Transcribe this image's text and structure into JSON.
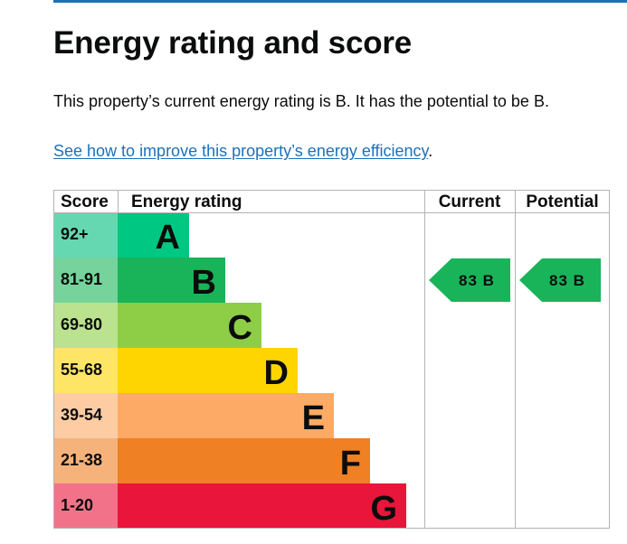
{
  "page": {
    "title": "Energy rating and score",
    "intro": "This property’s current energy rating is B. It has the potential to be B.",
    "link_text": "See how to improve this property’s energy efficiency",
    "link_suffix": "."
  },
  "chart_data": {
    "type": "table",
    "headers": {
      "score": "Score",
      "rating": "Energy rating",
      "current": "Current",
      "potential": "Potential"
    },
    "bands": [
      {
        "score": "92+",
        "letter": "A",
        "color": "#00c781",
        "score_bg": "#66d8b1"
      },
      {
        "score": "81-91",
        "letter": "B",
        "color": "#19b459",
        "score_bg": "#75d39b"
      },
      {
        "score": "69-80",
        "letter": "C",
        "color": "#8dce46",
        "score_bg": "#bae28f"
      },
      {
        "score": "55-68",
        "letter": "D",
        "color": "#ffd500",
        "score_bg": "#ffe566"
      },
      {
        "score": "39-54",
        "letter": "E",
        "color": "#fcaa65",
        "score_bg": "#fdcca3"
      },
      {
        "score": "21-38",
        "letter": "F",
        "color": "#ef8023",
        "score_bg": "#f5b37b"
      },
      {
        "score": "1-20",
        "letter": "G",
        "color": "#e9153b",
        "score_bg": "#f27389"
      }
    ],
    "current": {
      "score": 83,
      "band": "B",
      "label": "83 B",
      "color": "#19b459"
    },
    "potential": {
      "score": 83,
      "band": "B",
      "label": "83 B",
      "color": "#19b459"
    }
  }
}
